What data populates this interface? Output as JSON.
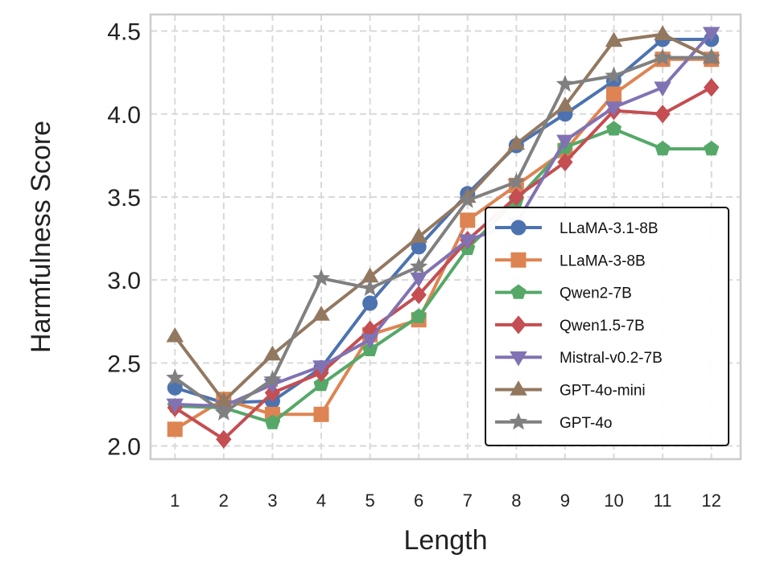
{
  "chart_data": {
    "type": "line",
    "xlabel": "Length",
    "ylabel": "Harmfulness Score",
    "x": [
      1,
      2,
      3,
      4,
      5,
      6,
      7,
      8,
      9,
      10,
      11,
      12
    ],
    "xlim": [
      0.5,
      12.6
    ],
    "ylim": [
      1.92,
      4.6
    ],
    "yticks": [
      2.0,
      2.5,
      3.0,
      3.5,
      4.0,
      4.5
    ],
    "ytick_labels": [
      "2.0",
      "2.5",
      "3.0",
      "3.5",
      "4.0",
      "4.5"
    ],
    "grid": true,
    "legend_position": "lower-right",
    "series": [
      {
        "name": "LLaMA-3.1-8B",
        "color": "#4c72b0",
        "marker": "circle",
        "values": [
          2.35,
          2.26,
          2.27,
          2.47,
          2.86,
          3.2,
          3.52,
          3.81,
          4.0,
          4.2,
          4.45,
          4.45
        ]
      },
      {
        "name": "LLaMA-3-8B",
        "color": "#dd8452",
        "marker": "square",
        "values": [
          2.1,
          2.28,
          2.19,
          2.19,
          2.67,
          2.76,
          3.36,
          3.57,
          3.78,
          4.12,
          4.33,
          4.33
        ]
      },
      {
        "name": "Qwen2-7B",
        "color": "#55a868",
        "marker": "pentagon",
        "values": [
          2.24,
          2.23,
          2.14,
          2.37,
          2.58,
          2.78,
          3.19,
          3.48,
          3.8,
          3.91,
          3.79,
          3.79
        ]
      },
      {
        "name": "Qwen1.5-7B",
        "color": "#c44e52",
        "marker": "diamond",
        "values": [
          2.23,
          2.04,
          2.32,
          2.44,
          2.7,
          2.91,
          3.24,
          3.5,
          3.71,
          4.02,
          4.0,
          4.16
        ]
      },
      {
        "name": "Mistral-v0.2-7B",
        "color": "#8172b3",
        "marker": "triangle-down",
        "values": [
          2.25,
          2.24,
          2.37,
          2.48,
          2.64,
          3.01,
          3.24,
          3.34,
          3.84,
          4.04,
          4.16,
          4.49
        ]
      },
      {
        "name": "GPT-4o-mini",
        "color": "#937860",
        "marker": "triangle-up",
        "values": [
          2.66,
          2.27,
          2.55,
          2.79,
          3.02,
          3.26,
          3.5,
          3.82,
          4.05,
          4.44,
          4.48,
          4.34
        ]
      },
      {
        "name": "GPT-4o",
        "color": "#808080",
        "marker": "star",
        "values": [
          2.41,
          2.2,
          2.4,
          3.01,
          2.95,
          3.08,
          3.48,
          3.59,
          4.18,
          4.23,
          4.34,
          4.34
        ]
      }
    ]
  }
}
